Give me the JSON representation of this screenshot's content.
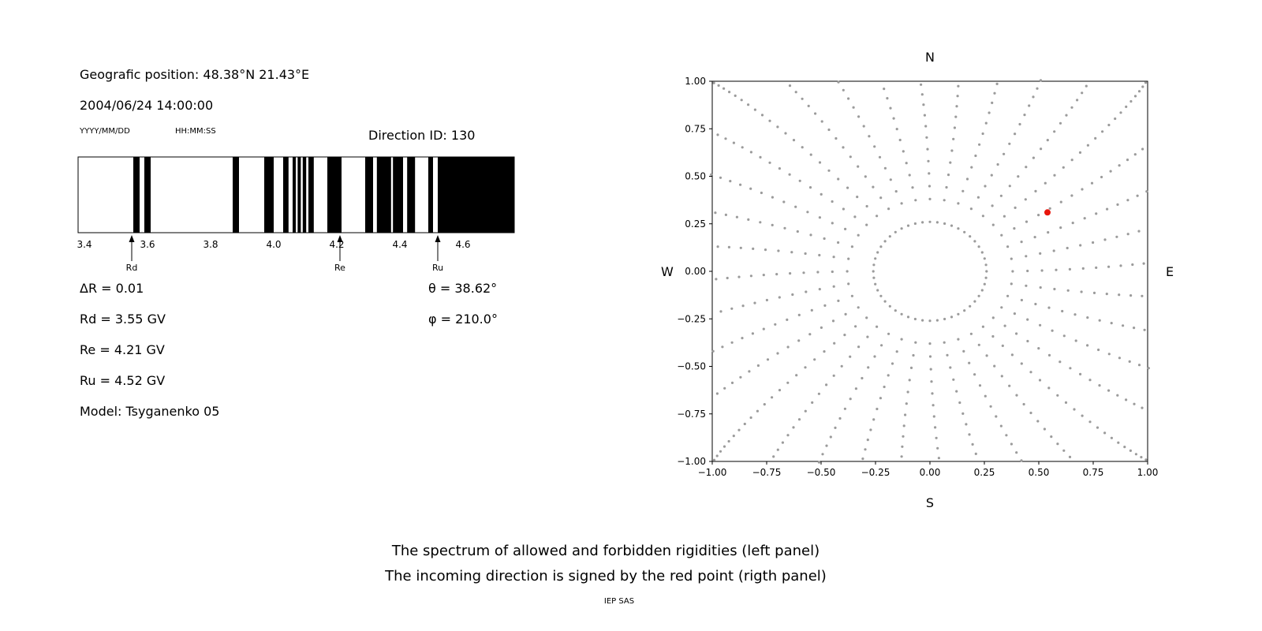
{
  "header": {
    "geo_position": "Geografic position: 48.38°N 21.43°E",
    "datetime": "2004/06/24 14:00:00",
    "date_format": "YYYY/MM/DD",
    "time_format": "HH:MM:SS",
    "direction_id": "Direction ID: 130"
  },
  "params": {
    "delta_r": "ΔR = 0.01",
    "rd": "Rd = 3.55 GV",
    "re": "Re = 4.21 GV",
    "ru": "Ru = 4.52 GV",
    "model": "Model: Tsyganenko 05",
    "theta": "θ = 38.62°",
    "phi": "φ = 210.0°"
  },
  "captions": {
    "line1": "The spectrum of allowed and forbidden rigidities (left panel)",
    "line2": "The incoming direction is signed by the red point (rigth panel)",
    "credit": "IEP SAS"
  },
  "chart_data": [
    {
      "id": "rigidity-spectrum",
      "type": "bar",
      "description": "Spectrum of allowed (black) and forbidden (white) rigidities in GV",
      "xlim": [
        3.38,
        4.7625
      ],
      "xticks": [
        3.4,
        3.6,
        3.8,
        4.0,
        4.2,
        4.4,
        4.6
      ],
      "xtick_labels": [
        "3.4",
        "3.6",
        "3.8",
        "4.0",
        "4.2",
        "4.4",
        "4.6"
      ],
      "allowed_bands": [
        [
          3.555,
          3.575
        ],
        [
          3.59,
          3.61
        ],
        [
          3.87,
          3.89
        ],
        [
          3.97,
          4.0
        ],
        [
          4.03,
          4.047
        ],
        [
          4.06,
          4.07
        ],
        [
          4.076,
          4.086
        ],
        [
          4.092,
          4.103
        ],
        [
          4.11,
          4.127
        ],
        [
          4.17,
          4.215
        ],
        [
          4.29,
          4.315
        ],
        [
          4.327,
          4.372
        ],
        [
          4.378,
          4.41
        ],
        [
          4.423,
          4.448
        ],
        [
          4.49,
          4.505
        ],
        [
          4.52,
          4.7625
        ]
      ],
      "band_color": "#000000",
      "markers": [
        {
          "label": "Rd",
          "x": 3.55
        },
        {
          "label": "Re",
          "x": 4.21
        },
        {
          "label": "Ru",
          "x": 4.52
        }
      ]
    },
    {
      "id": "direction-map",
      "type": "scatter",
      "description": "Asymptotic viewing directions; incoming direction marked by red point",
      "xlim": [
        -1,
        1
      ],
      "ylim": [
        -1,
        1
      ],
      "xticks": [
        -1.0,
        -0.75,
        -0.5,
        -0.25,
        0.0,
        0.25,
        0.5,
        0.75,
        1.0
      ],
      "yticks": [
        -1.0,
        -0.75,
        -0.5,
        -0.25,
        0.0,
        0.25,
        0.5,
        0.75,
        1.0
      ],
      "tick_labels": [
        "−1.00",
        "−0.75",
        "−0.50",
        "−0.25",
        "0.00",
        "0.25",
        "0.50",
        "0.75",
        "1.00"
      ],
      "labels": {
        "top": "N",
        "bottom": "S",
        "left": "W",
        "right": "E"
      },
      "inner_ring": {
        "radius": 0.26,
        "num_dots": 48
      },
      "rays": {
        "count": 36,
        "azimuth_step_deg": 10,
        "r_min": 0.38,
        "r_max": 1.46,
        "dots_per_ray": 26,
        "curvature_deg": 6,
        "end_bunching": 1.6
      },
      "dot_color": "#9b9b9b",
      "red_point": {
        "x": 0.54,
        "y": 0.31,
        "color": "#e8160c"
      }
    }
  ]
}
